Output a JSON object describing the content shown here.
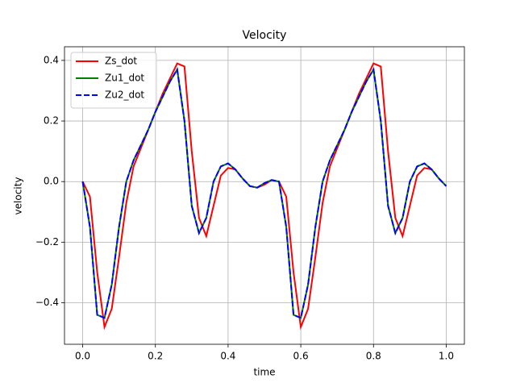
{
  "chart_data": {
    "type": "line",
    "title": "Velocity",
    "xlabel": "time",
    "ylabel": "velocity",
    "x": [
      0,
      0.02,
      0.04,
      0.06,
      0.08,
      0.1,
      0.12,
      0.14,
      0.16,
      0.18,
      0.2,
      0.22,
      0.24,
      0.26,
      0.28,
      0.3,
      0.32,
      0.34,
      0.36,
      0.38,
      0.4,
      0.42,
      0.44,
      0.46,
      0.48,
      0.5,
      0.52,
      0.54,
      0.56,
      0.58,
      0.6,
      0.62,
      0.64,
      0.66,
      0.68,
      0.7,
      0.72,
      0.74,
      0.76,
      0.78,
      0.8,
      0.82,
      0.84,
      0.86,
      0.88,
      0.9,
      0.92,
      0.94,
      0.96,
      0.98,
      1.0
    ],
    "series": [
      {
        "name": "Zs_dot",
        "color": "#ff0000",
        "dashed": false,
        "values": [
          0,
          -0.05,
          -0.3,
          -0.48,
          -0.42,
          -0.25,
          -0.07,
          0.05,
          0.11,
          0.17,
          0.23,
          0.29,
          0.34,
          0.39,
          0.38,
          0.1,
          -0.12,
          -0.18,
          -0.08,
          0.02,
          0.045,
          0.04,
          0.01,
          -0.015,
          -0.02,
          -0.01,
          0.005,
          0,
          -0.05,
          -0.3,
          -0.48,
          -0.42,
          -0.25,
          -0.07,
          0.05,
          0.11,
          0.17,
          0.23,
          0.29,
          0.34,
          0.39,
          0.38,
          0.1,
          -0.12,
          -0.18,
          -0.08,
          0.02,
          0.045,
          0.04,
          0.01,
          -0.015
        ]
      },
      {
        "name": "Zu1_dot",
        "color": "#008000",
        "dashed": false,
        "values": [
          0,
          -0.15,
          -0.44,
          -0.45,
          -0.34,
          -0.15,
          0,
          0.07,
          0.12,
          0.17,
          0.23,
          0.28,
          0.33,
          0.37,
          0.2,
          -0.08,
          -0.17,
          -0.12,
          0,
          0.05,
          0.06,
          0.04,
          0.01,
          -0.015,
          -0.02,
          -0.005,
          0.005,
          0,
          -0.15,
          -0.44,
          -0.45,
          -0.34,
          -0.15,
          0,
          0.07,
          0.12,
          0.17,
          0.23,
          0.28,
          0.33,
          0.37,
          0.2,
          -0.08,
          -0.17,
          -0.12,
          0,
          0.05,
          0.06,
          0.04,
          0.01,
          -0.015
        ]
      },
      {
        "name": "Zu2_dot",
        "color": "#0000ff",
        "dashed": true,
        "values": [
          0,
          -0.15,
          -0.44,
          -0.45,
          -0.34,
          -0.15,
          0,
          0.07,
          0.12,
          0.17,
          0.23,
          0.28,
          0.33,
          0.37,
          0.2,
          -0.08,
          -0.17,
          -0.12,
          0,
          0.05,
          0.06,
          0.04,
          0.01,
          -0.015,
          -0.02,
          -0.005,
          0.005,
          0,
          -0.15,
          -0.44,
          -0.45,
          -0.34,
          -0.15,
          0,
          0.07,
          0.12,
          0.17,
          0.23,
          0.28,
          0.33,
          0.37,
          0.2,
          -0.08,
          -0.17,
          -0.12,
          0,
          0.05,
          0.06,
          0.04,
          0.01,
          -0.015
        ]
      }
    ],
    "xlim": [
      -0.05,
      1.05
    ],
    "ylim": [
      -0.537,
      0.445
    ],
    "xticks": [
      {
        "value": 0,
        "label": "0.0"
      },
      {
        "value": 0.2,
        "label": "0.2"
      },
      {
        "value": 0.4,
        "label": "0.4"
      },
      {
        "value": 0.6,
        "label": "0.6"
      },
      {
        "value": 0.8,
        "label": "0.8"
      },
      {
        "value": 1.0,
        "label": "1.0"
      }
    ],
    "yticks": [
      {
        "value": -0.4,
        "label": "−0.4"
      },
      {
        "value": -0.2,
        "label": "−0.2"
      },
      {
        "value": 0,
        "label": "0.0"
      },
      {
        "value": 0.2,
        "label": "0.2"
      },
      {
        "value": 0.4,
        "label": "0.4"
      }
    ],
    "grid": true,
    "legend": "upper-left"
  }
}
